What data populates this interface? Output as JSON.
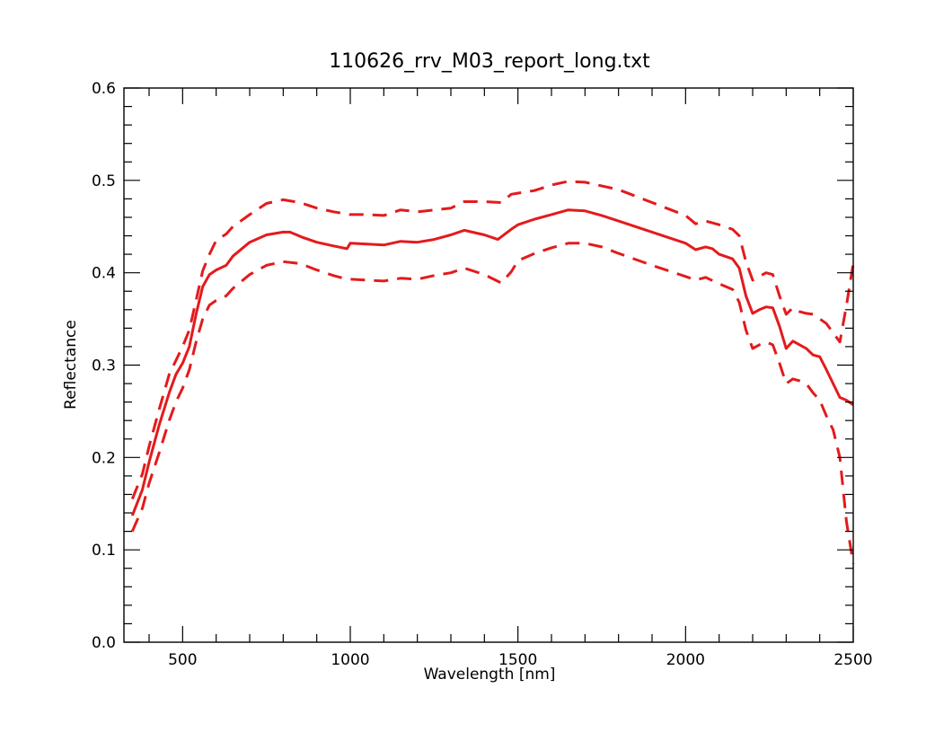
{
  "chart_data": {
    "type": "line",
    "title": "110626_rrv_M03_report_long.txt",
    "xlabel": "Wavelength [nm]",
    "ylabel": "Reflectance",
    "xlim": [
      325,
      2500
    ],
    "ylim": [
      0.0,
      0.6
    ],
    "x_ticks": [
      500,
      1000,
      1500,
      2000,
      2500
    ],
    "x_tick_labels": [
      "500",
      "1000",
      "1500",
      "2000",
      "2500"
    ],
    "y_ticks": [
      0.0,
      0.1,
      0.2,
      0.3,
      0.4,
      0.5,
      0.6
    ],
    "y_tick_labels": [
      "0.0",
      "0.1",
      "0.2",
      "0.3",
      "0.4",
      "0.5",
      "0.6"
    ],
    "grid": false,
    "colors": {
      "series": "#e41a1c",
      "axes": "#000000"
    },
    "series": [
      {
        "style": "solid",
        "points": [
          [
            350,
            0.137
          ],
          [
            380,
            0.165
          ],
          [
            400,
            0.195
          ],
          [
            430,
            0.235
          ],
          [
            460,
            0.27
          ],
          [
            480,
            0.29
          ],
          [
            500,
            0.302
          ],
          [
            520,
            0.32
          ],
          [
            540,
            0.355
          ],
          [
            560,
            0.385
          ],
          [
            580,
            0.398
          ],
          [
            600,
            0.403
          ],
          [
            630,
            0.408
          ],
          [
            650,
            0.418
          ],
          [
            700,
            0.433
          ],
          [
            750,
            0.441
          ],
          [
            800,
            0.444
          ],
          [
            820,
            0.444
          ],
          [
            860,
            0.438
          ],
          [
            900,
            0.433
          ],
          [
            950,
            0.429
          ],
          [
            990,
            0.426
          ],
          [
            1000,
            0.432
          ],
          [
            1050,
            0.431
          ],
          [
            1100,
            0.43
          ],
          [
            1150,
            0.434
          ],
          [
            1200,
            0.433
          ],
          [
            1250,
            0.436
          ],
          [
            1300,
            0.441
          ],
          [
            1340,
            0.446
          ],
          [
            1400,
            0.441
          ],
          [
            1440,
            0.436
          ],
          [
            1480,
            0.447
          ],
          [
            1500,
            0.452
          ],
          [
            1550,
            0.458
          ],
          [
            1600,
            0.463
          ],
          [
            1650,
            0.468
          ],
          [
            1700,
            0.467
          ],
          [
            1750,
            0.462
          ],
          [
            1800,
            0.456
          ],
          [
            1900,
            0.444
          ],
          [
            2000,
            0.432
          ],
          [
            2030,
            0.425
          ],
          [
            2060,
            0.428
          ],
          [
            2080,
            0.426
          ],
          [
            2100,
            0.42
          ],
          [
            2140,
            0.415
          ],
          [
            2160,
            0.405
          ],
          [
            2180,
            0.375
          ],
          [
            2200,
            0.356
          ],
          [
            2220,
            0.36
          ],
          [
            2240,
            0.363
          ],
          [
            2260,
            0.362
          ],
          [
            2280,
            0.342
          ],
          [
            2300,
            0.318
          ],
          [
            2320,
            0.326
          ],
          [
            2340,
            0.322
          ],
          [
            2360,
            0.318
          ],
          [
            2380,
            0.311
          ],
          [
            2400,
            0.309
          ],
          [
            2420,
            0.295
          ],
          [
            2440,
            0.28
          ],
          [
            2460,
            0.265
          ],
          [
            2480,
            0.262
          ],
          [
            2500,
            0.257
          ]
        ]
      },
      {
        "style": "dashed",
        "points": [
          [
            350,
            0.155
          ],
          [
            380,
            0.182
          ],
          [
            400,
            0.212
          ],
          [
            430,
            0.252
          ],
          [
            460,
            0.29
          ],
          [
            500,
            0.32
          ],
          [
            520,
            0.338
          ],
          [
            540,
            0.37
          ],
          [
            560,
            0.402
          ],
          [
            580,
            0.42
          ],
          [
            600,
            0.435
          ],
          [
            630,
            0.442
          ],
          [
            650,
            0.45
          ],
          [
            700,
            0.463
          ],
          [
            750,
            0.475
          ],
          [
            800,
            0.479
          ],
          [
            850,
            0.476
          ],
          [
            900,
            0.47
          ],
          [
            950,
            0.466
          ],
          [
            1000,
            0.463
          ],
          [
            1050,
            0.463
          ],
          [
            1100,
            0.462
          ],
          [
            1150,
            0.468
          ],
          [
            1200,
            0.466
          ],
          [
            1300,
            0.47
          ],
          [
            1340,
            0.477
          ],
          [
            1400,
            0.477
          ],
          [
            1450,
            0.476
          ],
          [
            1480,
            0.485
          ],
          [
            1550,
            0.489
          ],
          [
            1600,
            0.495
          ],
          [
            1650,
            0.499
          ],
          [
            1700,
            0.498
          ],
          [
            1800,
            0.49
          ],
          [
            1900,
            0.476
          ],
          [
            2000,
            0.462
          ],
          [
            2030,
            0.453
          ],
          [
            2060,
            0.456
          ],
          [
            2100,
            0.452
          ],
          [
            2140,
            0.447
          ],
          [
            2160,
            0.44
          ],
          [
            2180,
            0.412
          ],
          [
            2200,
            0.392
          ],
          [
            2220,
            0.396
          ],
          [
            2240,
            0.4
          ],
          [
            2260,
            0.398
          ],
          [
            2280,
            0.375
          ],
          [
            2300,
            0.355
          ],
          [
            2320,
            0.362
          ],
          [
            2340,
            0.358
          ],
          [
            2360,
            0.356
          ],
          [
            2380,
            0.355
          ],
          [
            2400,
            0.35
          ],
          [
            2420,
            0.345
          ],
          [
            2440,
            0.335
          ],
          [
            2460,
            0.325
          ],
          [
            2480,
            0.365
          ],
          [
            2500,
            0.41
          ]
        ]
      },
      {
        "style": "dashed",
        "points": [
          [
            350,
            0.12
          ],
          [
            380,
            0.145
          ],
          [
            400,
            0.172
          ],
          [
            430,
            0.205
          ],
          [
            460,
            0.24
          ],
          [
            480,
            0.26
          ],
          [
            500,
            0.275
          ],
          [
            520,
            0.295
          ],
          [
            540,
            0.325
          ],
          [
            560,
            0.35
          ],
          [
            580,
            0.365
          ],
          [
            600,
            0.37
          ],
          [
            630,
            0.375
          ],
          [
            650,
            0.383
          ],
          [
            700,
            0.398
          ],
          [
            750,
            0.408
          ],
          [
            800,
            0.412
          ],
          [
            850,
            0.41
          ],
          [
            900,
            0.403
          ],
          [
            950,
            0.397
          ],
          [
            990,
            0.393
          ],
          [
            1000,
            0.393
          ],
          [
            1050,
            0.392
          ],
          [
            1100,
            0.391
          ],
          [
            1150,
            0.394
          ],
          [
            1200,
            0.393
          ],
          [
            1250,
            0.397
          ],
          [
            1300,
            0.4
          ],
          [
            1340,
            0.405
          ],
          [
            1400,
            0.398
          ],
          [
            1450,
            0.389
          ],
          [
            1480,
            0.401
          ],
          [
            1500,
            0.413
          ],
          [
            1550,
            0.421
          ],
          [
            1600,
            0.427
          ],
          [
            1650,
            0.432
          ],
          [
            1700,
            0.432
          ],
          [
            1750,
            0.428
          ],
          [
            1800,
            0.421
          ],
          [
            1900,
            0.408
          ],
          [
            2000,
            0.396
          ],
          [
            2030,
            0.392
          ],
          [
            2060,
            0.395
          ],
          [
            2100,
            0.388
          ],
          [
            2140,
            0.382
          ],
          [
            2160,
            0.368
          ],
          [
            2180,
            0.338
          ],
          [
            2200,
            0.318
          ],
          [
            2220,
            0.322
          ],
          [
            2240,
            0.325
          ],
          [
            2260,
            0.322
          ],
          [
            2280,
            0.302
          ],
          [
            2300,
            0.28
          ],
          [
            2320,
            0.285
          ],
          [
            2340,
            0.283
          ],
          [
            2360,
            0.28
          ],
          [
            2380,
            0.27
          ],
          [
            2400,
            0.262
          ],
          [
            2420,
            0.245
          ],
          [
            2440,
            0.23
          ],
          [
            2460,
            0.2
          ],
          [
            2480,
            0.13
          ],
          [
            2500,
            0.085
          ]
        ]
      }
    ]
  }
}
